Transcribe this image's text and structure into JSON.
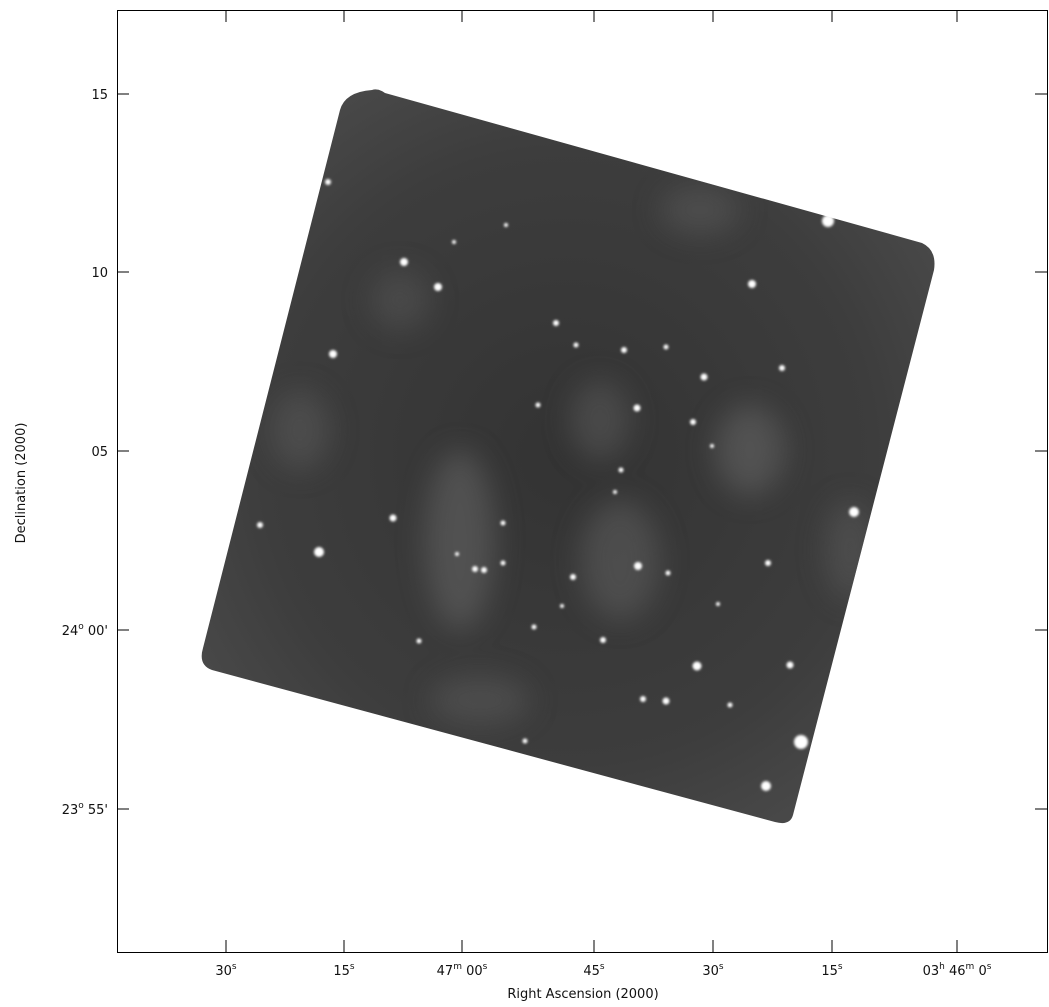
{
  "x_axis": {
    "title": "Right Ascension (2000)",
    "ticks": [
      [
        "30",
        "s"
      ],
      [
        "15",
        "s"
      ],
      [
        "47",
        "m",
        " 00",
        "s"
      ],
      [
        "45",
        "s"
      ],
      [
        "30",
        "s"
      ],
      [
        "15",
        "s"
      ],
      [
        "03",
        "h",
        " 46",
        "m",
        " 0",
        "s"
      ]
    ]
  },
  "y_axis": {
    "title": "Declination (2000)",
    "ticks": [
      [
        "15"
      ],
      [
        "10"
      ],
      [
        "05"
      ],
      [
        "24",
        "o",
        " 00'"
      ],
      [
        "23",
        "o",
        " 55'"
      ]
    ]
  }
}
